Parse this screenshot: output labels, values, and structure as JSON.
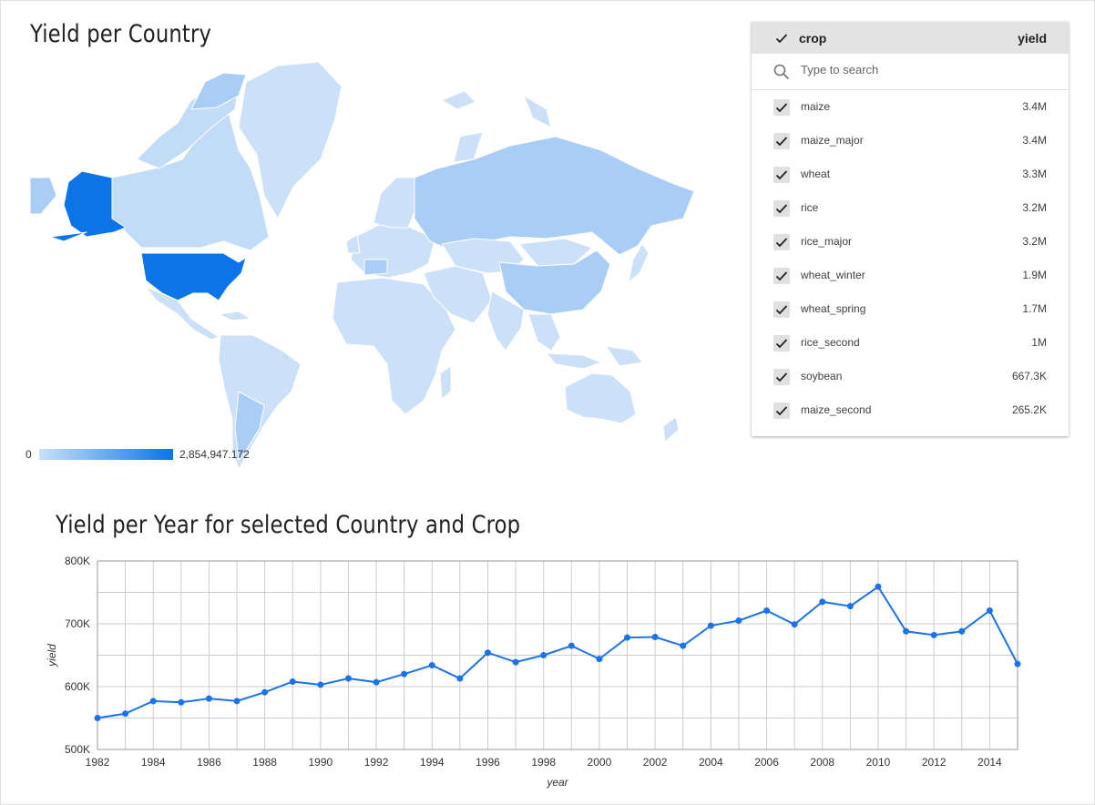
{
  "map_title": "Yield per Country",
  "line_title": "Yield per Year for selected Country and Crop",
  "map_legend": {
    "min_label": "0",
    "max_label": "2,854,947.172",
    "low_color": "#c9e1f9",
    "high_color": "#0a74e8"
  },
  "crop_table": {
    "header": {
      "crop": "crop",
      "yield": "yield"
    },
    "search_placeholder": "Type to search",
    "rows": [
      {
        "crop": "maize",
        "yield": "3.4M"
      },
      {
        "crop": "maize_major",
        "yield": "3.4M"
      },
      {
        "crop": "wheat",
        "yield": "3.3M"
      },
      {
        "crop": "rice",
        "yield": "3.2M"
      },
      {
        "crop": "rice_major",
        "yield": "3.2M"
      },
      {
        "crop": "wheat_winter",
        "yield": "1.9M"
      },
      {
        "crop": "wheat_spring",
        "yield": "1.7M"
      },
      {
        "crop": "rice_second",
        "yield": "1M"
      },
      {
        "crop": "soybean",
        "yield": "667.3K"
      },
      {
        "crop": "maize_second",
        "yield": "265.2K"
      }
    ]
  },
  "chart_data": {
    "type": "line",
    "title": "Yield per Year for selected Country and Crop",
    "xlabel": "year",
    "ylabel": "yield",
    "xlim": [
      1982,
      2015
    ],
    "ylim": [
      500000,
      800000
    ],
    "x_ticks": [
      1982,
      1984,
      1986,
      1988,
      1990,
      1992,
      1994,
      1996,
      1998,
      2000,
      2002,
      2004,
      2006,
      2008,
      2010,
      2012,
      2014
    ],
    "y_ticks": [
      500000,
      600000,
      700000,
      800000
    ],
    "y_tick_labels": [
      "500K",
      "600K",
      "700K",
      "800K"
    ],
    "grid": true,
    "line_color": "#1a73e8",
    "series": [
      {
        "x": [
          1982,
          1983,
          1984,
          1985,
          1986,
          1987,
          1988,
          1989,
          1990,
          1991,
          1992,
          1993,
          1994,
          1995,
          1996,
          1997,
          1998,
          1999,
          2000,
          2001,
          2002,
          2003,
          2004,
          2005,
          2006,
          2007,
          2008,
          2009,
          2010,
          2011,
          2012,
          2013,
          2014,
          2015
        ],
        "values": [
          550000,
          557000,
          577000,
          575000,
          581000,
          577000,
          591000,
          608000,
          603000,
          613000,
          607000,
          620000,
          634000,
          613000,
          654000,
          639000,
          650000,
          665000,
          644000,
          678000,
          679000,
          665000,
          697000,
          705000,
          721000,
          699000,
          735000,
          728000,
          759000,
          688000,
          682000,
          688000,
          721000,
          636000
        ]
      }
    ]
  }
}
